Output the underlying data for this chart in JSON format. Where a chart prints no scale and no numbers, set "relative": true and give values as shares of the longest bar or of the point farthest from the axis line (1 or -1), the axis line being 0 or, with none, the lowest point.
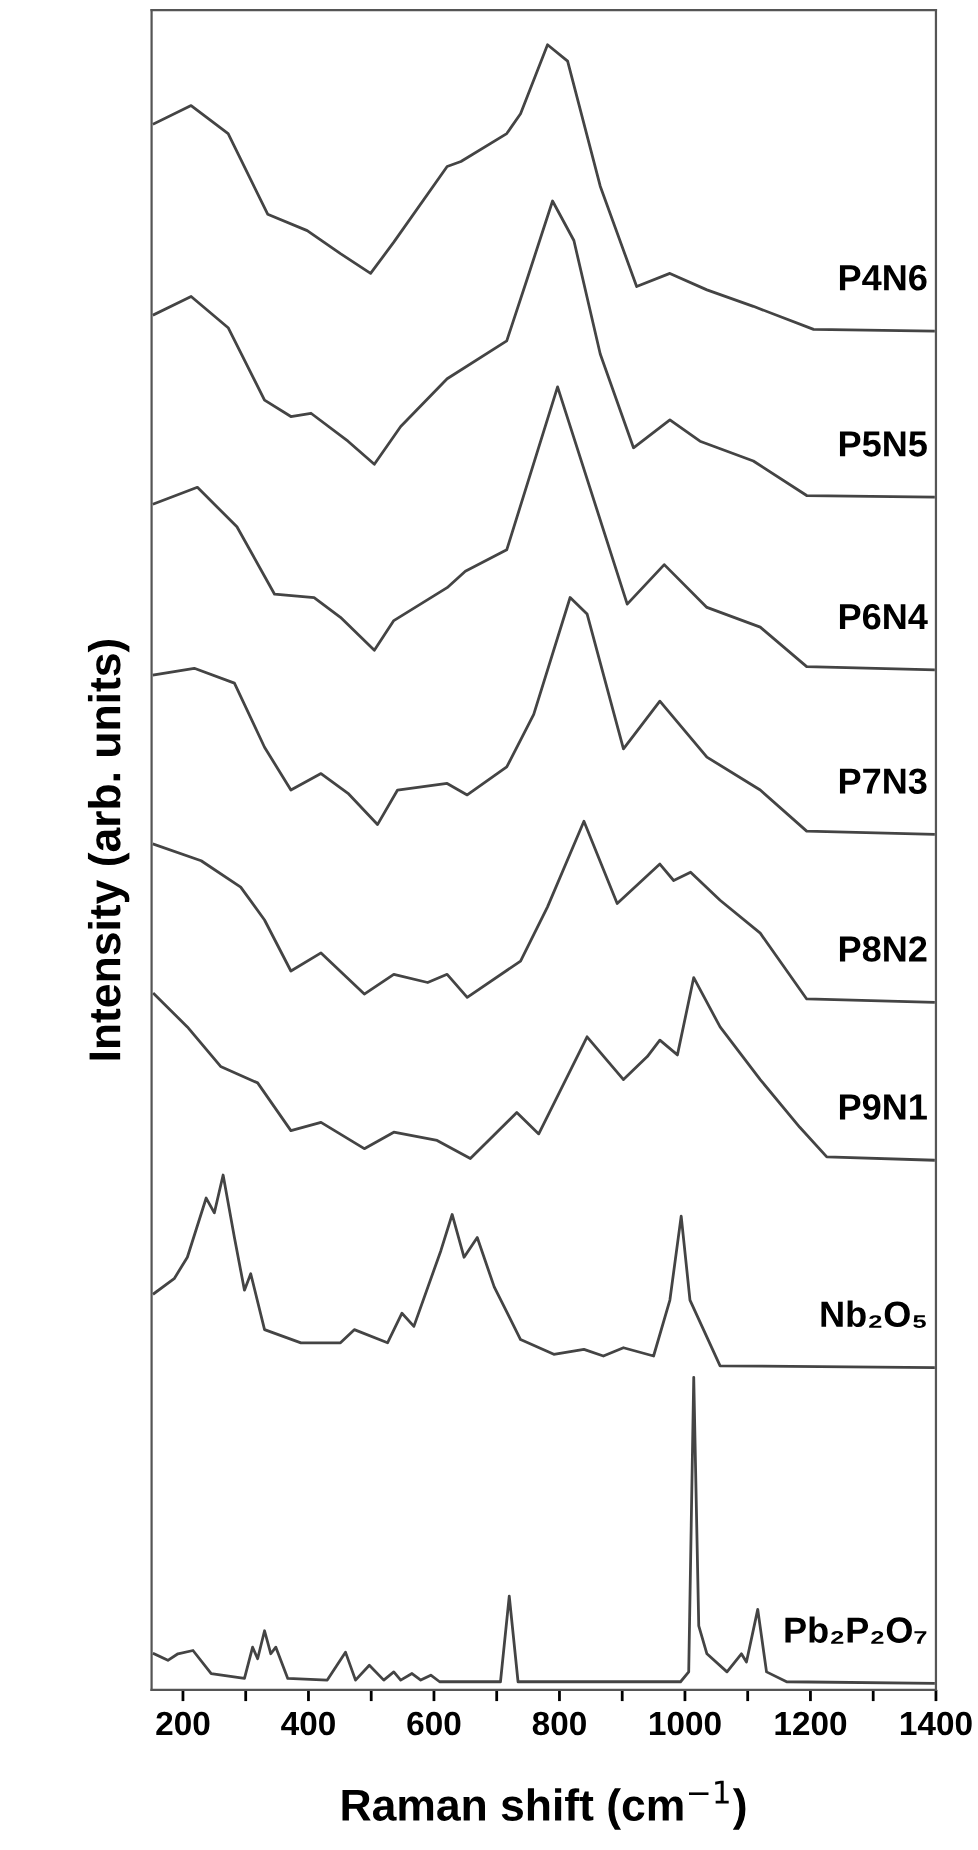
{
  "chart_data": {
    "type": "line",
    "relative": true,
    "xlabel": "Raman shift (cm$^{−1}$)",
    "ylabel": "Intensity (arb. units)",
    "xlim": [
      150,
      1400
    ],
    "xticks": [
      200,
      {
        "value": 300,
        "label": null
      },
      400,
      {
        "value": 500,
        "label": null
      },
      600,
      {
        "value": 700,
        "label": null
      },
      800,
      {
        "value": 900,
        "label": null
      },
      1000,
      {
        "value": 1100,
        "label": null
      },
      1200,
      {
        "value": 1300,
        "label": null
      },
      1400
    ],
    "legend": false,
    "grid": false,
    "tick_labels": "x",
    "series": [
      {
        "name": "P4N6",
        "color": "#444444",
        "x": [
          154,
          213,
          272,
          335,
          398,
          451,
          499,
          536,
          621,
          643,
          716,
          738,
          781,
          813,
          865,
          923,
          976,
          1035,
          1109,
          1205,
          1396
        ],
        "values": [
          0.952,
          0.963,
          0.946,
          0.897,
          0.887,
          0.873,
          0.861,
          0.88,
          0.926,
          0.929,
          0.946,
          0.958,
          1.0,
          0.99,
          0.914,
          0.853,
          0.861,
          0.851,
          0.841,
          0.827,
          0.826
        ]
      },
      {
        "name": "P5N5",
        "color": "#444444",
        "x": [
          154,
          213,
          272,
          330,
          372,
          404,
          463,
          505,
          547,
          621,
          716,
          748,
          789,
          823,
          865,
          918,
          976,
          1024,
          1109,
          1194,
          1396
        ],
        "values": [
          0.836,
          0.847,
          0.828,
          0.784,
          0.774,
          0.776,
          0.759,
          0.745,
          0.768,
          0.797,
          0.82,
          0.857,
          0.905,
          0.881,
          0.812,
          0.755,
          0.772,
          0.759,
          0.747,
          0.726,
          0.725
        ]
      },
      {
        "name": "P6N4",
        "color": "#444444",
        "x": [
          154,
          223,
          286,
          346,
          409,
          451,
          505,
          536,
          621,
          650,
          716,
          797,
          908,
          967,
          1035,
          1120,
          1194,
          1396
        ],
        "values": [
          0.721,
          0.731,
          0.707,
          0.666,
          0.664,
          0.652,
          0.632,
          0.65,
          0.67,
          0.68,
          0.693,
          0.792,
          0.66,
          0.684,
          0.658,
          0.646,
          0.622,
          0.62
        ]
      },
      {
        "name": "P7N3",
        "color": "#444444",
        "x": [
          154,
          218,
          282,
          330,
          372,
          420,
          463,
          510,
          542,
          621,
          653,
          716,
          759,
          817,
          844,
          902,
          960,
          1035,
          1120,
          1194,
          1396
        ],
        "values": [
          0.617,
          0.621,
          0.612,
          0.573,
          0.547,
          0.557,
          0.545,
          0.526,
          0.547,
          0.551,
          0.544,
          0.561,
          0.593,
          0.664,
          0.654,
          0.572,
          0.601,
          0.567,
          0.547,
          0.522,
          0.52
        ]
      },
      {
        "name": "P8N2",
        "color": "#444444",
        "x": [
          154,
          229,
          292,
          330,
          372,
          420,
          489,
          536,
          590,
          621,
          653,
          738,
          781,
          839,
          892,
          960,
          982,
          1009,
          1056,
          1120,
          1194,
          1396
        ],
        "values": [
          0.514,
          0.504,
          0.488,
          0.468,
          0.437,
          0.448,
          0.423,
          0.435,
          0.43,
          0.435,
          0.421,
          0.443,
          0.476,
          0.528,
          0.478,
          0.502,
          0.492,
          0.497,
          0.48,
          0.46,
          0.42,
          0.418
        ]
      },
      {
        "name": "P9N1",
        "color": "#444444",
        "x": [
          154,
          207,
          260,
          319,
          372,
          420,
          489,
          536,
          605,
          658,
          732,
          767,
          844,
          902,
          940,
          960,
          988,
          1014,
          1056,
          1120,
          1183,
          1226,
          1396
        ],
        "values": [
          0.423,
          0.403,
          0.379,
          0.369,
          0.34,
          0.345,
          0.329,
          0.339,
          0.334,
          0.323,
          0.351,
          0.338,
          0.397,
          0.371,
          0.385,
          0.395,
          0.386,
          0.433,
          0.403,
          0.371,
          0.342,
          0.324,
          0.322
        ]
      },
      {
        "name": "Nb₂O₅",
        "color": "#444444",
        "x": [
          154,
          186,
          207,
          237,
          250,
          264,
          282,
          298,
          308,
          330,
          388,
          451,
          473,
          526,
          549,
          568,
          611,
          629,
          648,
          669,
          696,
          738,
          791,
          839,
          870,
          902,
          950,
          976,
          994,
          1008,
          1056,
          1396
        ],
        "values": [
          0.241,
          0.25,
          0.263,
          0.299,
          0.29,
          0.313,
          0.275,
          0.243,
          0.253,
          0.219,
          0.211,
          0.211,
          0.219,
          0.211,
          0.229,
          0.221,
          0.267,
          0.289,
          0.263,
          0.275,
          0.245,
          0.213,
          0.204,
          0.207,
          0.203,
          0.208,
          0.203,
          0.237,
          0.288,
          0.237,
          0.197,
          0.196
        ]
      },
      {
        "name": "Pb₂P₂O₇",
        "color": "#444444",
        "x": [
          154,
          176,
          192,
          216,
          245,
          298,
          311,
          319,
          330,
          340,
          348,
          367,
          430,
          459,
          475,
          497,
          520,
          536,
          547,
          565,
          579,
          595,
          609,
          706,
          720,
          734,
          993,
          1006,
          1014,
          1022,
          1035,
          1067,
          1090,
          1098,
          1116,
          1130,
          1162,
          1396
        ],
        "values": [
          0.022,
          0.018,
          0.022,
          0.024,
          0.01,
          0.007,
          0.026,
          0.019,
          0.036,
          0.022,
          0.026,
          0.007,
          0.006,
          0.023,
          0.006,
          0.015,
          0.006,
          0.011,
          0.006,
          0.01,
          0.006,
          0.009,
          0.005,
          0.005,
          0.057,
          0.005,
          0.005,
          0.011,
          0.19,
          0.039,
          0.022,
          0.011,
          0.022,
          0.017,
          0.049,
          0.011,
          0.005,
          0.004
        ]
      }
    ]
  }
}
